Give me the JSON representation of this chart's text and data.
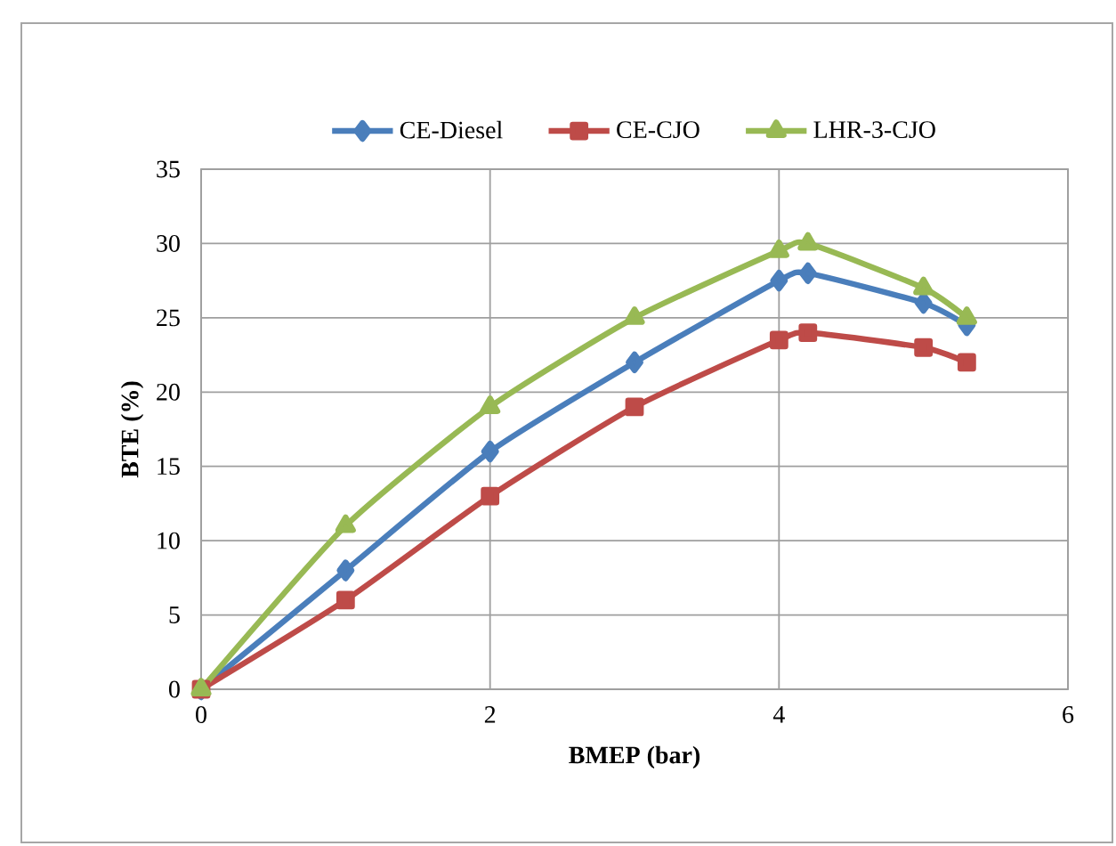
{
  "chart_data": {
    "type": "line",
    "xlabel": "BMEP (bar)",
    "ylabel": "BTE (%)",
    "x": [
      0,
      1,
      2,
      3,
      4,
      4.2,
      5,
      5.3
    ],
    "series": [
      {
        "name": "CE-Diesel",
        "color": "#4a7ebb",
        "marker": "diamond",
        "values": [
          0,
          8,
          16,
          22,
          27.5,
          28,
          26,
          24.5
        ]
      },
      {
        "name": "CE-CJO",
        "color": "#be4b48",
        "marker": "square",
        "values": [
          0,
          6,
          13,
          19,
          23.5,
          24,
          23,
          22
        ]
      },
      {
        "name": "LHR-3-CJO",
        "color": "#98b954",
        "marker": "triangle",
        "values": [
          0,
          11,
          19,
          25,
          29.5,
          30,
          27,
          25
        ]
      }
    ],
    "xlim": [
      0,
      6
    ],
    "xticks": [
      0,
      2,
      4,
      6
    ],
    "ylim": [
      0,
      35
    ],
    "yticks": [
      0,
      5,
      10,
      15,
      20,
      25,
      30,
      35
    ],
    "grid": true,
    "legend": "top",
    "line_style": "solid"
  }
}
